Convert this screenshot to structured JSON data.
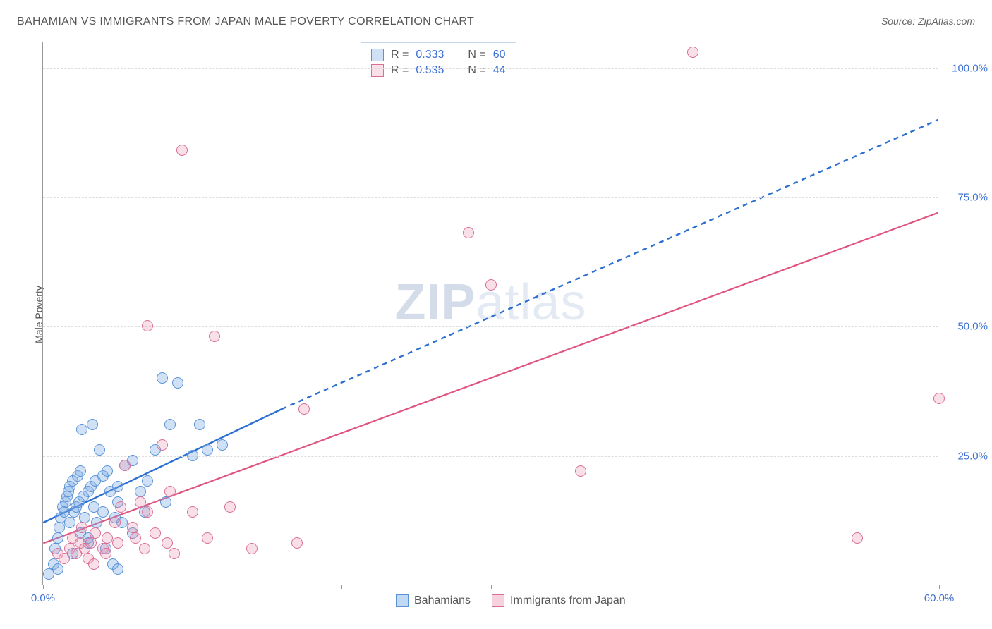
{
  "title": "BAHAMIAN VS IMMIGRANTS FROM JAPAN MALE POVERTY CORRELATION CHART",
  "source": "Source: ZipAtlas.com",
  "watermark": {
    "bold": "ZIP",
    "rest": "atlas"
  },
  "ylabel": "Male Poverty",
  "chart": {
    "type": "scatter",
    "xlim": [
      0,
      60
    ],
    "ylim": [
      0,
      105
    ],
    "xticks": [
      0,
      10,
      20,
      30,
      40,
      50,
      60
    ],
    "xtick_labels": [
      "0.0%",
      "",
      "",
      "",
      "",
      "",
      "60.0%"
    ],
    "yticks": [
      25,
      50,
      75,
      100
    ],
    "ytick_labels": [
      "25.0%",
      "50.0%",
      "75.0%",
      "100.0%"
    ],
    "grid_color": "#dddddd",
    "background_color": "#ffffff",
    "axis_color": "#999999",
    "tick_label_color": "#3b6fd1",
    "marker_radius": 8,
    "marker_stroke_width": 1.2,
    "series": [
      {
        "name": "Bahamians",
        "fill": "rgba(120,170,230,0.35)",
        "stroke": "#5a93d6",
        "R": 0.333,
        "N": 60,
        "trend": {
          "solid": {
            "x1": 0,
            "y1": 12,
            "x2": 16,
            "y2": 34
          },
          "dashed": {
            "x1": 16,
            "y1": 34,
            "x2": 60,
            "y2": 90
          },
          "color": "#2a6fd1",
          "width": 2.4
        },
        "points": [
          [
            0.4,
            2
          ],
          [
            0.7,
            4
          ],
          [
            0.8,
            7
          ],
          [
            1.0,
            9
          ],
          [
            1.1,
            11
          ],
          [
            1.2,
            13
          ],
          [
            1.3,
            15
          ],
          [
            1.4,
            14
          ],
          [
            1.5,
            16
          ],
          [
            1.6,
            17
          ],
          [
            1.7,
            18
          ],
          [
            1.8,
            12
          ],
          [
            1.8,
            19
          ],
          [
            2.0,
            20
          ],
          [
            2.1,
            14
          ],
          [
            2.2,
            15
          ],
          [
            2.3,
            21
          ],
          [
            2.4,
            16
          ],
          [
            2.5,
            22
          ],
          [
            2.5,
            10
          ],
          [
            2.6,
            30
          ],
          [
            2.7,
            17
          ],
          [
            2.8,
            13
          ],
          [
            3.0,
            18
          ],
          [
            3.0,
            9
          ],
          [
            3.2,
            19
          ],
          [
            3.3,
            31
          ],
          [
            3.4,
            15
          ],
          [
            3.5,
            20
          ],
          [
            3.6,
            12
          ],
          [
            3.8,
            26
          ],
          [
            4.0,
            21
          ],
          [
            4.0,
            14
          ],
          [
            4.2,
            7
          ],
          [
            4.3,
            22
          ],
          [
            4.5,
            18
          ],
          [
            4.7,
            4
          ],
          [
            4.8,
            13
          ],
          [
            5.0,
            16
          ],
          [
            5.0,
            19
          ],
          [
            5.3,
            12
          ],
          [
            5.5,
            23
          ],
          [
            6.0,
            10
          ],
          [
            6.0,
            24
          ],
          [
            6.5,
            18
          ],
          [
            6.8,
            14
          ],
          [
            7.0,
            20
          ],
          [
            7.5,
            26
          ],
          [
            8.0,
            40
          ],
          [
            8.2,
            16
          ],
          [
            8.5,
            31
          ],
          [
            9.0,
            39
          ],
          [
            10.0,
            25
          ],
          [
            10.5,
            31
          ],
          [
            11.0,
            26
          ],
          [
            12.0,
            27
          ],
          [
            5.0,
            3
          ],
          [
            1.0,
            3
          ],
          [
            2.0,
            6
          ],
          [
            3.0,
            8
          ]
        ]
      },
      {
        "name": "Immigrants from Japan",
        "fill": "rgba(235,140,170,0.28)",
        "stroke": "#da6f96",
        "R": 0.535,
        "N": 44,
        "trend": {
          "solid": {
            "x1": 0,
            "y1": 8,
            "x2": 60,
            "y2": 72
          },
          "color": "#e0557f",
          "width": 2.2
        },
        "points": [
          [
            1.0,
            6
          ],
          [
            1.4,
            5
          ],
          [
            1.8,
            7
          ],
          [
            2.0,
            9
          ],
          [
            2.2,
            6
          ],
          [
            2.5,
            8
          ],
          [
            2.6,
            11
          ],
          [
            2.8,
            7
          ],
          [
            3.0,
            5
          ],
          [
            3.2,
            8
          ],
          [
            3.4,
            4
          ],
          [
            3.5,
            10
          ],
          [
            4.0,
            7
          ],
          [
            4.2,
            6
          ],
          [
            4.3,
            9
          ],
          [
            4.8,
            12
          ],
          [
            5.0,
            8
          ],
          [
            5.2,
            15
          ],
          [
            5.5,
            23
          ],
          [
            6.0,
            11
          ],
          [
            6.2,
            9
          ],
          [
            6.5,
            16
          ],
          [
            6.8,
            7
          ],
          [
            7.0,
            14
          ],
          [
            7.0,
            50
          ],
          [
            7.5,
            10
          ],
          [
            8.0,
            27
          ],
          [
            8.3,
            8
          ],
          [
            8.5,
            18
          ],
          [
            8.8,
            6
          ],
          [
            9.3,
            84
          ],
          [
            10.0,
            14
          ],
          [
            11.0,
            9
          ],
          [
            11.5,
            48
          ],
          [
            12.5,
            15
          ],
          [
            14.0,
            7
          ],
          [
            17.0,
            8
          ],
          [
            17.5,
            34
          ],
          [
            28.5,
            68
          ],
          [
            30.0,
            58
          ],
          [
            36.0,
            22
          ],
          [
            43.5,
            103
          ],
          [
            54.5,
            9
          ],
          [
            60.0,
            36
          ]
        ]
      }
    ]
  },
  "legend_bottom": [
    {
      "label": "Bahamians",
      "fill": "rgba(120,170,230,0.45)",
      "stroke": "#5a93d6"
    },
    {
      "label": "Immigrants from Japan",
      "fill": "rgba(235,140,170,0.4)",
      "stroke": "#da6f96"
    }
  ]
}
